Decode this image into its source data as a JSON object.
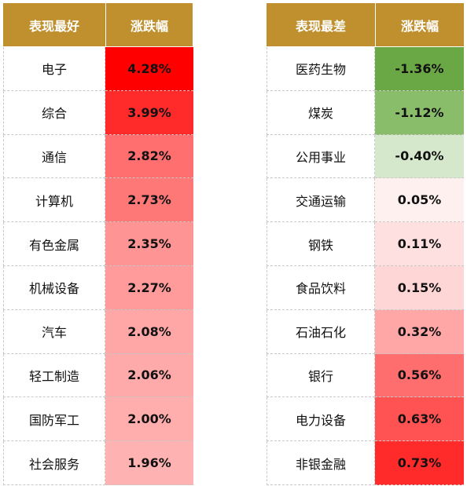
{
  "headers": {
    "best_label": "表现最好",
    "best_change": "涨跌幅",
    "worst_label": "表现最差",
    "worst_change": "涨跌幅"
  },
  "colors": {
    "header_bg": "#c0902e",
    "header_text": "#ffffff"
  },
  "rows": [
    {
      "best_name": "电子",
      "best_value": "4.28%",
      "best_color": "#ff0000",
      "worst_name": "医药生物",
      "worst_value": "-1.36%",
      "worst_color": "#6aa745"
    },
    {
      "best_name": "综合",
      "best_value": "3.99%",
      "best_color": "#ff2a2a",
      "worst_name": "煤炭",
      "worst_value": "-1.12%",
      "worst_color": "#8abd6a"
    },
    {
      "best_name": "通信",
      "best_value": "2.82%",
      "best_color": "#ff6f6f",
      "worst_name": "公用事业",
      "worst_value": "-0.40%",
      "worst_color": "#d6e8cb"
    },
    {
      "best_name": "计算机",
      "best_value": "2.73%",
      "best_color": "#ff7878",
      "worst_name": "交通运输",
      "worst_value": "0.05%",
      "worst_color": "#fff0f0"
    },
    {
      "best_name": "有色金属",
      "best_value": "2.35%",
      "best_color": "#ff9494",
      "worst_name": "钢铁",
      "worst_value": "0.11%",
      "worst_color": "#ffe0e0"
    },
    {
      "best_name": "机械设备",
      "best_value": "2.27%",
      "best_color": "#ff9b9b",
      "worst_name": "食品饮料",
      "worst_value": "0.15%",
      "worst_color": "#ffd6d6"
    },
    {
      "best_name": "汽车",
      "best_value": "2.08%",
      "best_color": "#ffa7a7",
      "worst_name": "石油石化",
      "worst_value": "0.32%",
      "worst_color": "#ffa7a7"
    },
    {
      "best_name": "轻工制造",
      "best_value": "2.06%",
      "best_color": "#ffaaaa",
      "worst_name": "银行",
      "worst_value": "0.56%",
      "worst_color": "#ff6e6e"
    },
    {
      "best_name": "国防军工",
      "best_value": "2.00%",
      "best_color": "#ffadad",
      "worst_name": "电力设备",
      "worst_value": "0.63%",
      "worst_color": "#ff5252"
    },
    {
      "best_name": "社会服务",
      "best_value": "1.96%",
      "best_color": "#ffb2b2",
      "worst_name": "非银金融",
      "worst_value": "0.73%",
      "worst_color": "#ff2a2a"
    }
  ]
}
